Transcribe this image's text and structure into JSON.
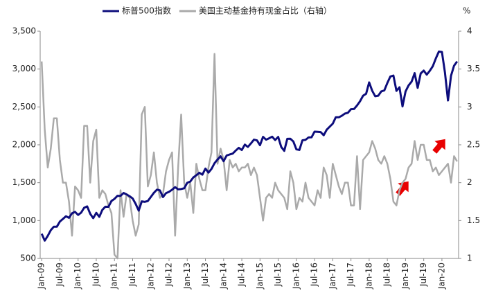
{
  "chart_data": {
    "type": "line",
    "y2_label": "%",
    "categories": [
      "Jan-09",
      null,
      null,
      null,
      null,
      null,
      "Jul-09",
      null,
      null,
      null,
      null,
      null,
      "Jan-10",
      null,
      null,
      null,
      null,
      null,
      "Jul-10",
      null,
      null,
      null,
      null,
      null,
      "Jan-11",
      null,
      null,
      null,
      null,
      null,
      "Jul-11",
      null,
      null,
      null,
      null,
      null,
      "Jan-12",
      null,
      null,
      null,
      null,
      null,
      "Jul-12",
      null,
      null,
      null,
      null,
      null,
      "Jan-13",
      null,
      null,
      null,
      null,
      null,
      "Jul-13",
      null,
      null,
      null,
      null,
      null,
      "Jan-14",
      null,
      null,
      null,
      null,
      null,
      "Jul-14",
      null,
      null,
      null,
      null,
      null,
      "Jan-15",
      null,
      null,
      null,
      null,
      null,
      "Jul-15",
      null,
      null,
      null,
      null,
      null,
      "Jan-16",
      null,
      null,
      null,
      null,
      null,
      "Jul-16",
      null,
      null,
      null,
      null,
      null,
      "Jan-17",
      null,
      null,
      null,
      null,
      null,
      "Jul-17",
      null,
      null,
      null,
      null,
      null,
      "Jan-18",
      null,
      null,
      null,
      null,
      null,
      "Jul-18",
      null,
      null,
      null,
      null,
      null,
      "Jan-19",
      null,
      null,
      null,
      null,
      null,
      "Jul-19",
      null,
      null,
      null,
      null,
      null,
      "Jan-20",
      null,
      null,
      null,
      null,
      null
    ],
    "series": [
      {
        "name": "标普500指数",
        "color": "#0d0d7c",
        "axis": "y",
        "values": [
          826,
          735,
          798,
          873,
          919,
          919,
          987,
          1021,
          1057,
          1036,
          1096,
          1115,
          1074,
          1104,
          1169,
          1187,
          1089,
          1031,
          1102,
          1049,
          1141,
          1183,
          1181,
          1258,
          1286,
          1327,
          1326,
          1364,
          1345,
          1321,
          1292,
          1219,
          1131,
          1253,
          1247,
          1258,
          1312,
          1366,
          1408,
          1398,
          1310,
          1362,
          1379,
          1407,
          1441,
          1412,
          1416,
          1426,
          1498,
          1515,
          1569,
          1598,
          1631,
          1606,
          1686,
          1633,
          1682,
          1757,
          1806,
          1848,
          1783,
          1859,
          1872,
          1884,
          1924,
          1960,
          1931,
          2003,
          1972,
          2018,
          2068,
          2059,
          1995,
          2105,
          2068,
          2086,
          2107,
          2063,
          2104,
          1972,
          1920,
          2079,
          2080,
          2044,
          1940,
          1932,
          2060,
          2065,
          2097,
          2099,
          2174,
          2171,
          2168,
          2126,
          2199,
          2239,
          2279,
          2364,
          2363,
          2384,
          2412,
          2423,
          2470,
          2472,
          2519,
          2575,
          2648,
          2674,
          2824,
          2714,
          2641,
          2648,
          2705,
          2718,
          2816,
          2902,
          2914,
          2712,
          2760,
          2507,
          2704,
          2784,
          2834,
          2946,
          2752,
          2942,
          2980,
          2926,
          2977,
          3038,
          3141,
          3231,
          3226,
          2954,
          2585,
          2912,
          3044,
          3100
        ]
      },
      {
        "name": "美国主动基金持有现金占比（右轴）",
        "color": "#aaaaaa",
        "axis": "y2",
        "values": [
          3.6,
          2.7,
          2.2,
          2.45,
          2.85,
          2.85,
          2.3,
          2.0,
          2.0,
          1.75,
          1.3,
          1.95,
          1.9,
          1.8,
          2.75,
          2.75,
          2.0,
          2.55,
          2.7,
          1.8,
          1.9,
          1.85,
          1.7,
          1.6,
          1.05,
          1.0,
          1.9,
          1.55,
          1.85,
          1.8,
          1.5,
          1.3,
          1.45,
          2.9,
          3.0,
          1.95,
          2.1,
          2.4,
          2.0,
          1.8,
          1.85,
          2.15,
          2.3,
          2.4,
          1.3,
          2.2,
          2.9,
          2.0,
          1.8,
          2.0,
          1.6,
          2.25,
          2.05,
          1.9,
          1.9,
          2.2,
          2.4,
          3.7,
          2.25,
          2.45,
          2.3,
          1.9,
          2.3,
          2.2,
          2.25,
          2.15,
          2.2,
          2.2,
          2.25,
          2.1,
          2.2,
          2.1,
          1.8,
          1.5,
          1.8,
          1.85,
          1.8,
          2.0,
          1.9,
          1.85,
          1.8,
          1.65,
          2.15,
          2.0,
          1.65,
          1.8,
          1.75,
          2.0,
          1.8,
          1.75,
          1.7,
          1.9,
          1.8,
          2.2,
          2.1,
          1.8,
          2.25,
          2.1,
          1.95,
          1.85,
          2.0,
          2.0,
          1.7,
          1.7,
          2.35,
          1.65,
          2.3,
          2.35,
          2.4,
          2.55,
          2.45,
          2.3,
          2.25,
          2.35,
          2.25,
          2.05,
          1.75,
          1.7,
          1.9,
          2.0,
          2.05,
          2.2,
          2.25,
          2.55,
          2.3,
          2.5,
          2.5,
          2.3,
          2.3,
          2.15,
          2.2,
          2.1,
          2.15,
          2.2,
          2.25,
          2.0,
          2.35,
          2.28
        ]
      }
    ],
    "ylim": [
      500,
      3500
    ],
    "yticks": [
      500,
      {
        "value": 1000,
        "label": "1,000"
      },
      {
        "value": 1500,
        "label": "1,500"
      },
      {
        "value": 2000,
        "label": "2,000"
      },
      {
        "value": 2500,
        "label": "2,500"
      },
      {
        "value": 3000,
        "label": "3,000"
      },
      {
        "value": 3500,
        "label": "3,500"
      }
    ],
    "y2lim": [
      1,
      4
    ],
    "y2ticks": [
      1,
      1.5,
      2,
      2.5,
      3,
      3.5,
      4
    ]
  }
}
